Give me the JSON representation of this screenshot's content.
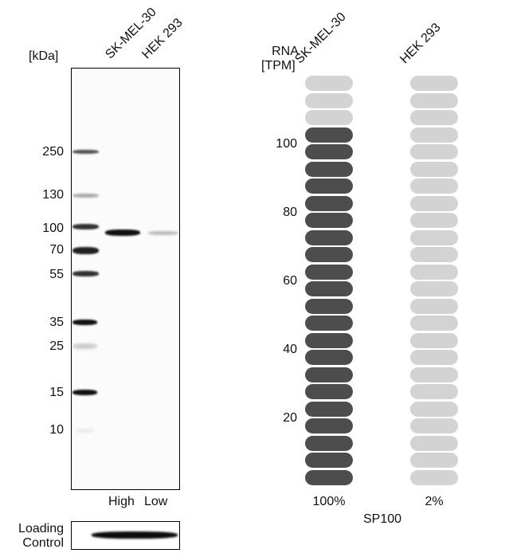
{
  "western_blot": {
    "unit_label": "[kDa]",
    "lanes": [
      "SK-MEL-30",
      "HEK 293"
    ],
    "marker_labels": [
      "250",
      "130",
      "100",
      "70",
      "55",
      "35",
      "25",
      "15",
      "10"
    ],
    "lane_expression": [
      "High",
      "Low"
    ],
    "loading_control_label_line1": "Loading",
    "loading_control_label_line2": "Control"
  },
  "rna": {
    "axis_label_line1": "RNA",
    "axis_label_line2": "[TPM]",
    "cell_lines": [
      "SK-MEL-30",
      "HEK 293"
    ],
    "percent_labels": [
      "100%",
      "2%"
    ],
    "gene": "SP100",
    "tick_labels": [
      "100",
      "80",
      "60",
      "40",
      "20"
    ]
  },
  "colors": {
    "pill_filled": "#4d4d4d",
    "pill_empty": "#d3d3d3",
    "band_dark": "#111111"
  },
  "chart_data": [
    {
      "type": "table",
      "title": "Western blot (SP100)",
      "ylabel": "[kDa]",
      "marker_kda": [
        250,
        130,
        100,
        70,
        55,
        35,
        25,
        15,
        10
      ],
      "lanes": [
        "SK-MEL-30",
        "HEK 293"
      ],
      "band_kda": 100,
      "band_intensity": [
        "High",
        "Low"
      ],
      "loading_control": "Loading Control"
    },
    {
      "type": "bar",
      "title": "SP100",
      "ylabel": "RNA [TPM]",
      "categories": [
        "SK-MEL-30",
        "HEK 293"
      ],
      "values_percent": [
        100,
        2
      ],
      "filled_pills": [
        21,
        0
      ],
      "total_pills": 24,
      "yticks": [
        20,
        40,
        60,
        80,
        100
      ],
      "grid": false
    }
  ]
}
